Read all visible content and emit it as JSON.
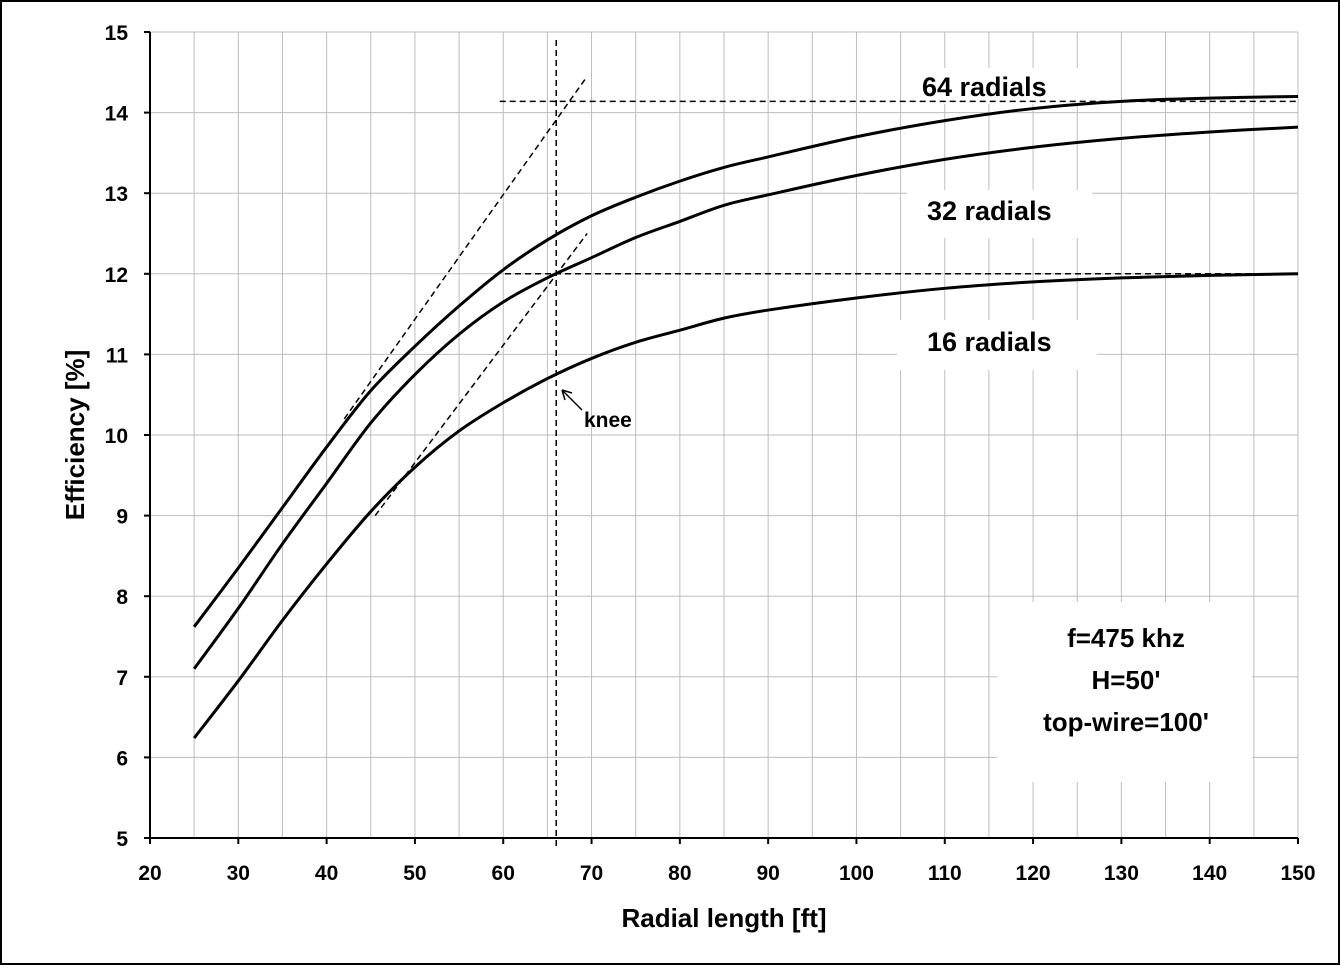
{
  "chart_data": {
    "type": "line",
    "title": "",
    "xlabel": "Radial length [ft]",
    "ylabel": "Efficiency [%]",
    "xlim": [
      20,
      150
    ],
    "ylim": [
      5,
      15
    ],
    "x_ticks": [
      20,
      30,
      40,
      50,
      60,
      70,
      80,
      90,
      100,
      110,
      120,
      130,
      140,
      150
    ],
    "y_ticks": [
      5,
      6,
      7,
      8,
      9,
      10,
      11,
      12,
      13,
      14,
      15
    ],
    "grid": true,
    "x": [
      25,
      30,
      35,
      40,
      45,
      50,
      55,
      60,
      65,
      70,
      75,
      80,
      85,
      90,
      100,
      110,
      120,
      130,
      140,
      150
    ],
    "series": [
      {
        "name": "64 radials",
        "values": [
          7.62,
          8.35,
          9.1,
          9.85,
          10.55,
          11.1,
          11.6,
          12.05,
          12.42,
          12.72,
          12.95,
          13.15,
          13.32,
          13.45,
          13.7,
          13.9,
          14.05,
          14.14,
          14.18,
          14.2
        ]
      },
      {
        "name": "32 radials",
        "values": [
          7.1,
          7.85,
          8.65,
          9.4,
          10.15,
          10.75,
          11.25,
          11.65,
          11.95,
          12.2,
          12.45,
          12.65,
          12.85,
          12.98,
          13.22,
          13.42,
          13.57,
          13.68,
          13.76,
          13.82
        ]
      },
      {
        "name": "16 radials",
        "values": [
          6.24,
          6.95,
          7.7,
          8.4,
          9.05,
          9.6,
          10.05,
          10.4,
          10.7,
          10.95,
          11.15,
          11.3,
          11.45,
          11.55,
          11.7,
          11.82,
          11.9,
          11.95,
          11.98,
          12.0
        ]
      }
    ],
    "guide_lines": {
      "knee_x": 66,
      "h_line_64_y": 14.14,
      "h_line_16_y": 12.0
    },
    "annotations": {
      "knee": "knee",
      "params": [
        "f=475 khz",
        "H=50'",
        "top-wire=100'"
      ]
    }
  }
}
